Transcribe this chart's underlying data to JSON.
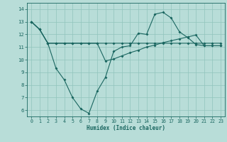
{
  "xlabel": "Humidex (Indice chaleur)",
  "bg_color": "#b8ddd8",
  "grid_color": "#90c4bc",
  "line_color": "#1a6660",
  "xlim": [
    -0.5,
    23.5
  ],
  "ylim": [
    5.5,
    14.5
  ],
  "xticks": [
    0,
    1,
    2,
    3,
    4,
    5,
    6,
    7,
    8,
    9,
    10,
    11,
    12,
    13,
    14,
    15,
    16,
    17,
    18,
    19,
    20,
    21,
    22,
    23
  ],
  "yticks": [
    6,
    7,
    8,
    9,
    10,
    11,
    12,
    13,
    14
  ],
  "line1_x": [
    0,
    1,
    2,
    3,
    4,
    5,
    6,
    7,
    8,
    9,
    10,
    11,
    12,
    13,
    14,
    15,
    16,
    17,
    18,
    19,
    20,
    21,
    22,
    23
  ],
  "line1_y": [
    13.0,
    12.4,
    11.3,
    11.3,
    11.3,
    11.3,
    11.3,
    11.3,
    11.3,
    11.3,
    11.3,
    11.3,
    11.3,
    11.3,
    11.3,
    11.3,
    11.3,
    11.3,
    11.3,
    11.3,
    11.3,
    11.3,
    11.3,
    11.3
  ],
  "line2_x": [
    0,
    1,
    2,
    3,
    4,
    5,
    6,
    7,
    8,
    9,
    10,
    11,
    12,
    13,
    14,
    15,
    16,
    17,
    18,
    19,
    20,
    21,
    22,
    23
  ],
  "line2_y": [
    13.0,
    12.4,
    11.3,
    9.3,
    8.4,
    7.0,
    6.1,
    5.75,
    7.5,
    8.6,
    10.65,
    11.0,
    11.1,
    12.1,
    12.0,
    13.6,
    13.75,
    13.3,
    12.2,
    11.75,
    11.2,
    11.1,
    11.1,
    11.1
  ],
  "line3_x": [
    0,
    1,
    2,
    3,
    4,
    5,
    6,
    7,
    8,
    9,
    10,
    11,
    12,
    13,
    14,
    15,
    16,
    17,
    18,
    19,
    20,
    21,
    22,
    23
  ],
  "line3_y": [
    13.0,
    12.4,
    11.3,
    11.3,
    11.3,
    11.3,
    11.3,
    11.3,
    11.3,
    9.9,
    10.05,
    10.3,
    10.55,
    10.75,
    11.0,
    11.15,
    11.35,
    11.5,
    11.65,
    11.8,
    11.95,
    11.1,
    11.1,
    11.1
  ]
}
